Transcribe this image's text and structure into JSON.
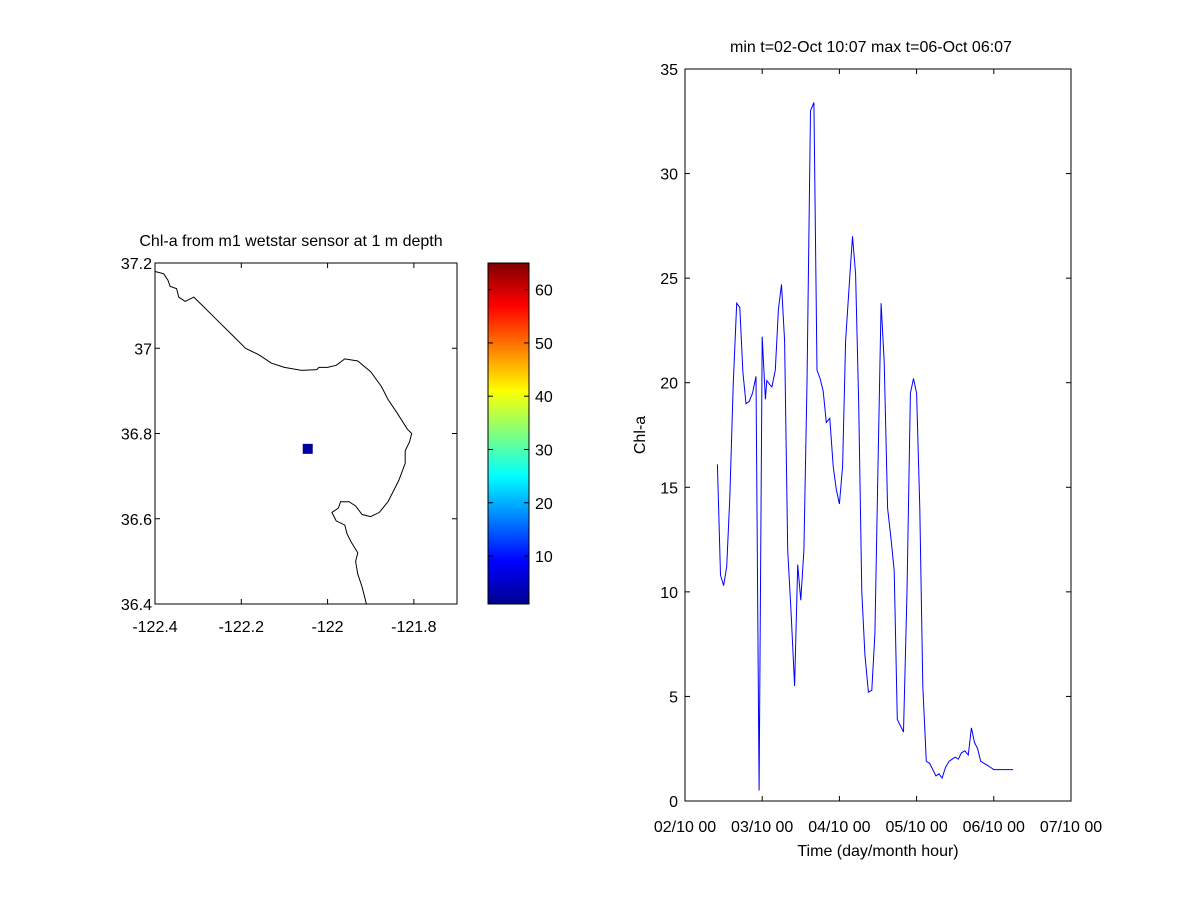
{
  "chart_data": [
    {
      "type": "map",
      "title": "Chl-a from m1 wetstar sensor at 1 m depth",
      "xlim": [
        -122.4,
        -121.7
      ],
      "ylim": [
        36.4,
        37.2
      ],
      "xticks": [
        -122.4,
        -122.2,
        -122,
        -121.8
      ],
      "yticks": [
        36.4,
        36.6,
        36.8,
        37,
        37.2
      ],
      "xtick_labels": [
        "-122.4",
        "-122.2",
        "-122",
        "-121.8"
      ],
      "ytick_labels": [
        "36.4",
        "36.6",
        "36.8",
        "37",
        "37.2"
      ],
      "coastline": [
        [
          -122.4,
          37.18
        ],
        [
          -122.38,
          37.175
        ],
        [
          -122.37,
          37.16
        ],
        [
          -122.365,
          37.145
        ],
        [
          -122.35,
          37.14
        ],
        [
          -122.345,
          37.12
        ],
        [
          -122.33,
          37.11
        ],
        [
          -122.31,
          37.12
        ],
        [
          -122.29,
          37.1
        ],
        [
          -122.27,
          37.08
        ],
        [
          -122.25,
          37.06
        ],
        [
          -122.22,
          37.03
        ],
        [
          -122.19,
          37.0
        ],
        [
          -122.16,
          36.985
        ],
        [
          -122.13,
          36.965
        ],
        [
          -122.1,
          36.955
        ],
        [
          -122.06,
          36.948
        ],
        [
          -122.025,
          36.95
        ],
        [
          -122.02,
          36.955
        ],
        [
          -122.0,
          36.955
        ],
        [
          -121.98,
          36.96
        ],
        [
          -121.96,
          36.975
        ],
        [
          -121.93,
          36.97
        ],
        [
          -121.9,
          36.945
        ],
        [
          -121.875,
          36.91
        ],
        [
          -121.86,
          36.88
        ],
        [
          -121.84,
          36.85
        ],
        [
          -121.815,
          36.81
        ],
        [
          -121.805,
          36.8
        ],
        [
          -121.81,
          36.78
        ],
        [
          -121.82,
          36.76
        ],
        [
          -121.82,
          36.73
        ],
        [
          -121.835,
          36.69
        ],
        [
          -121.86,
          36.64
        ],
        [
          -121.88,
          36.615
        ],
        [
          -121.9,
          36.605
        ],
        [
          -121.92,
          36.61
        ],
        [
          -121.935,
          36.63
        ],
        [
          -121.95,
          36.64
        ],
        [
          -121.97,
          36.64
        ],
        [
          -121.975,
          36.625
        ],
        [
          -121.99,
          36.615
        ],
        [
          -121.98,
          36.595
        ],
        [
          -121.96,
          36.585
        ],
        [
          -121.955,
          36.565
        ],
        [
          -121.945,
          36.545
        ],
        [
          -121.93,
          36.52
        ],
        [
          -121.935,
          36.5
        ],
        [
          -121.93,
          36.47
        ],
        [
          -121.92,
          36.44
        ],
        [
          -121.91,
          36.4
        ]
      ],
      "points": [
        {
          "lon": -122.046,
          "lat": 36.764,
          "value": 3
        }
      ],
      "colorbar": {
        "colormap": "jet",
        "range": [
          1,
          65
        ],
        "ticks": [
          10,
          20,
          30,
          40,
          50,
          60
        ],
        "tick_labels": [
          "10",
          "20",
          "30",
          "40",
          "50",
          "60"
        ]
      }
    },
    {
      "type": "line",
      "title": "min t=02-Oct 10:07 max t=06-Oct 06:07",
      "xlabel": "Time (day/month hour)",
      "ylabel": "Chl-a",
      "x_unit": "days",
      "xlim": [
        2.0,
        7.0
      ],
      "ylim": [
        0,
        35
      ],
      "xticks": [
        2,
        3,
        4,
        5,
        6,
        7
      ],
      "xtick_labels": [
        "02/10 00",
        "03/10 00",
        "04/10 00",
        "05/10 00",
        "06/10 00",
        "07/10 00"
      ],
      "yticks": [
        0,
        5,
        10,
        15,
        20,
        25,
        30,
        35
      ],
      "ytick_labels": [
        "0",
        "5",
        "10",
        "15",
        "20",
        "25",
        "30",
        "35"
      ],
      "series": [
        {
          "color": "#0000ff",
          "x": [
            2.42,
            2.46,
            2.5,
            2.54,
            2.58,
            2.625,
            2.67,
            2.71,
            2.75,
            2.79,
            2.83,
            2.875,
            2.92,
            2.96,
            3.0,
            3.042,
            3.06,
            3.08,
            3.1,
            3.125,
            3.17,
            3.21,
            3.25,
            3.29,
            3.33,
            3.375,
            3.42,
            3.46,
            3.5,
            3.54,
            3.58,
            3.625,
            3.67,
            3.71,
            3.75,
            3.79,
            3.83,
            3.875,
            3.92,
            3.96,
            4.0,
            4.042,
            4.08,
            4.125,
            4.17,
            4.21,
            4.25,
            4.29,
            4.33,
            4.375,
            4.42,
            4.46,
            4.5,
            4.54,
            4.58,
            4.625,
            4.67,
            4.71,
            4.75,
            4.79,
            4.83,
            4.875,
            4.92,
            4.96,
            5.0,
            5.042,
            5.08,
            5.125,
            5.17,
            5.21,
            5.25,
            5.29,
            5.33,
            5.375,
            5.42,
            5.46,
            5.5,
            5.54,
            5.58,
            5.625,
            5.67,
            5.71,
            5.75,
            5.79,
            5.83,
            5.875,
            5.92,
            5.96,
            6.0,
            6.042,
            6.08,
            6.125,
            6.17,
            6.21,
            6.25
          ],
          "y": [
            16.1,
            10.8,
            10.3,
            11.2,
            14.5,
            20.0,
            23.8,
            23.6,
            20.5,
            19.0,
            19.1,
            19.5,
            20.3,
            0.5,
            22.2,
            19.2,
            20.1,
            20.0,
            19.9,
            19.8,
            20.6,
            23.5,
            24.7,
            22.0,
            12.0,
            9.0,
            5.5,
            11.3,
            9.6,
            12.0,
            20.0,
            33.0,
            33.4,
            20.6,
            20.2,
            19.6,
            18.1,
            18.3,
            16.0,
            14.9,
            14.2,
            16.0,
            22.0,
            24.5,
            27.0,
            25.2,
            19.0,
            10.0,
            7.0,
            5.2,
            5.3,
            8.0,
            16.0,
            23.8,
            21.0,
            14.0,
            12.5,
            11.0,
            3.9,
            3.6,
            3.3,
            10.0,
            19.5,
            20.2,
            19.5,
            14.0,
            5.5,
            1.9,
            1.8,
            1.5,
            1.2,
            1.3,
            1.1,
            1.6,
            1.9,
            2.0,
            2.1,
            2.0,
            2.3,
            2.4,
            2.2,
            3.5,
            2.8,
            2.5,
            1.9,
            1.8,
            1.7,
            1.6,
            1.5,
            1.5,
            1.5,
            1.5,
            1.5,
            1.5,
            1.5
          ]
        }
      ]
    }
  ]
}
